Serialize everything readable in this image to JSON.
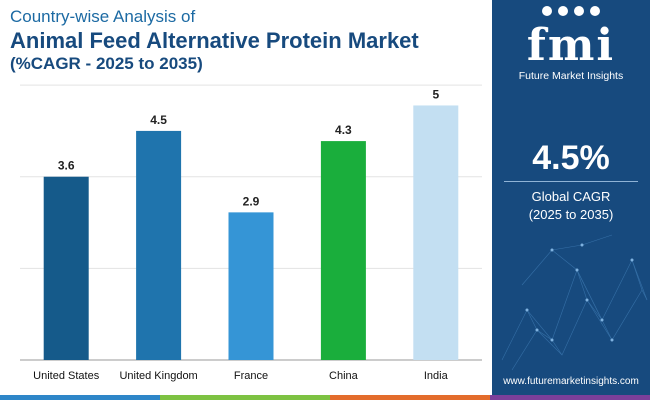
{
  "header": {
    "line1": "Country-wise Analysis of",
    "line2": "Animal Feed Alternative Protein Market",
    "line3": "(%CAGR - 2025 to 2035)"
  },
  "chart_data": {
    "type": "bar",
    "title": "Country-wise Analysis of Animal Feed Alternative Protein Market (%CAGR - 2025 to 2035)",
    "categories": [
      "United States",
      "United Kingdom",
      "France",
      "China",
      "India"
    ],
    "values": [
      3.6,
      4.5,
      2.9,
      4.3,
      5
    ],
    "value_labels": [
      "3.6",
      "4.5",
      "2.9",
      "4.3",
      "5"
    ],
    "colors": [
      "#155a8a",
      "#1f74ad",
      "#3595d6",
      "#1aae3c",
      "#c3dff2"
    ],
    "ylim": [
      0,
      5.5
    ],
    "grid": true,
    "xlabel": "",
    "ylabel": ""
  },
  "side": {
    "logo": "fmi",
    "brand": "Future Market Insights",
    "cagr_value": "4.5%",
    "cagr_label": "Global CAGR",
    "cagr_range": "(2025 to 2035)",
    "website": "www.futuremarketinsights.com",
    "colors": {
      "panel": "#174a7e"
    }
  },
  "footer_bar_colors": [
    "#2e86c8",
    "#7dc242",
    "#e36c2c",
    "#7b3f9a"
  ]
}
